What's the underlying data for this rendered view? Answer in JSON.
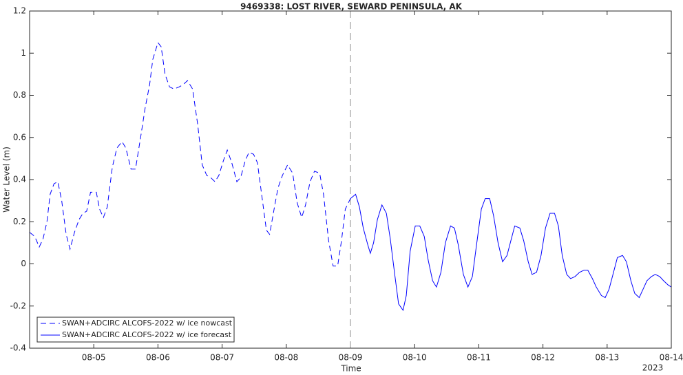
{
  "chart_data": {
    "type": "line",
    "title": "9469338: LOST RIVER, SEWARD PENINSULA, AK",
    "x_label": "Time",
    "y_label": "Water Level (m)",
    "x_axis_year": "2023",
    "xlim": [
      4,
      14
    ],
    "ylim": [
      -0.4,
      1.2
    ],
    "xticks": [
      {
        "value": 5,
        "label": "08-05"
      },
      {
        "value": 6,
        "label": "08-06"
      },
      {
        "value": 7,
        "label": "08-07"
      },
      {
        "value": 8,
        "label": "08-08"
      },
      {
        "value": 9,
        "label": "08-09"
      },
      {
        "value": 10,
        "label": "08-10"
      },
      {
        "value": 11,
        "label": "08-11"
      },
      {
        "value": 12,
        "label": "08-12"
      },
      {
        "value": 13,
        "label": "08-13"
      },
      {
        "value": 14,
        "label": "08-14"
      }
    ],
    "yticks": [
      -0.4,
      -0.2,
      0,
      0.2,
      0.4,
      0.6,
      0.8,
      1,
      1.2
    ],
    "divider_x": 9,
    "grid": false,
    "legend_position": "lower left",
    "series": [
      {
        "name": "SWAN+ADCIRC ALCOFS-2022 w/ ice nowcast",
        "color": "#0000ff",
        "dash": true,
        "x": [
          4.0,
          4.08,
          4.15,
          4.21,
          4.27,
          4.32,
          4.38,
          4.44,
          4.5,
          4.57,
          4.63,
          4.7,
          4.77,
          4.83,
          4.89,
          4.95,
          5.04,
          5.09,
          5.15,
          5.21,
          5.29,
          5.36,
          5.44,
          5.5,
          5.58,
          5.65,
          5.73,
          5.8,
          5.87,
          5.92,
          6.0,
          6.05,
          6.11,
          6.18,
          6.25,
          6.33,
          6.39,
          6.46,
          6.54,
          6.62,
          6.69,
          6.76,
          6.82,
          6.89,
          6.95,
          7.02,
          7.08,
          7.15,
          7.23,
          7.29,
          7.36,
          7.42,
          7.49,
          7.55,
          7.62,
          7.69,
          7.74,
          7.81,
          7.87,
          7.94,
          8.02,
          8.1,
          8.17,
          8.24,
          8.3,
          8.37,
          8.44,
          8.52,
          8.58,
          8.66,
          8.73,
          8.8,
          8.86,
          8.92,
          9.0
        ],
        "values": [
          0.15,
          0.13,
          0.08,
          0.12,
          0.2,
          0.33,
          0.38,
          0.39,
          0.3,
          0.14,
          0.07,
          0.15,
          0.21,
          0.24,
          0.25,
          0.34,
          0.34,
          0.26,
          0.22,
          0.27,
          0.46,
          0.55,
          0.58,
          0.55,
          0.45,
          0.45,
          0.6,
          0.74,
          0.85,
          0.97,
          1.05,
          1.03,
          0.9,
          0.84,
          0.83,
          0.84,
          0.85,
          0.87,
          0.83,
          0.66,
          0.47,
          0.42,
          0.41,
          0.39,
          0.42,
          0.49,
          0.54,
          0.48,
          0.39,
          0.41,
          0.49,
          0.53,
          0.52,
          0.48,
          0.32,
          0.16,
          0.14,
          0.26,
          0.36,
          0.42,
          0.47,
          0.43,
          0.29,
          0.22,
          0.28,
          0.39,
          0.44,
          0.43,
          0.33,
          0.11,
          -0.01,
          -0.01,
          0.11,
          0.26,
          0.31
        ]
      },
      {
        "name": "SWAN+ADCIRC ALCOFS-2022 w/ ice forecast",
        "color": "#0000ff",
        "dash": false,
        "x": [
          9.0,
          9.08,
          9.14,
          9.2,
          9.27,
          9.31,
          9.36,
          9.42,
          9.49,
          9.56,
          9.62,
          9.69,
          9.75,
          9.82,
          9.87,
          9.93,
          10.01,
          10.08,
          10.15,
          10.21,
          10.28,
          10.34,
          10.41,
          10.48,
          10.56,
          10.62,
          10.68,
          10.76,
          10.83,
          10.9,
          10.96,
          11.04,
          11.1,
          11.17,
          11.23,
          11.3,
          11.37,
          11.44,
          11.5,
          11.56,
          11.64,
          11.7,
          11.77,
          11.83,
          11.9,
          11.97,
          12.04,
          12.11,
          12.18,
          12.24,
          12.3,
          12.37,
          12.43,
          12.5,
          12.57,
          12.64,
          12.7,
          12.77,
          12.83,
          12.91,
          12.97,
          13.03,
          13.1,
          13.16,
          13.24,
          13.3,
          13.37,
          13.43,
          13.5,
          13.56,
          13.62,
          13.69,
          13.75,
          13.82,
          13.88,
          13.95,
          14.0
        ],
        "values": [
          0.31,
          0.33,
          0.27,
          0.17,
          0.09,
          0.05,
          0.1,
          0.21,
          0.28,
          0.24,
          0.12,
          -0.05,
          -0.19,
          -0.22,
          -0.15,
          0.06,
          0.18,
          0.18,
          0.13,
          0.02,
          -0.08,
          -0.11,
          -0.04,
          0.1,
          0.18,
          0.17,
          0.09,
          -0.05,
          -0.11,
          -0.06,
          0.08,
          0.26,
          0.31,
          0.31,
          0.23,
          0.1,
          0.01,
          0.04,
          0.11,
          0.18,
          0.17,
          0.11,
          0.01,
          -0.05,
          -0.04,
          0.04,
          0.17,
          0.24,
          0.24,
          0.18,
          0.04,
          -0.05,
          -0.07,
          -0.06,
          -0.04,
          -0.03,
          -0.03,
          -0.07,
          -0.11,
          -0.15,
          -0.16,
          -0.12,
          -0.04,
          0.03,
          0.04,
          0.01,
          -0.08,
          -0.14,
          -0.16,
          -0.12,
          -0.08,
          -0.06,
          -0.05,
          -0.06,
          -0.08,
          -0.1,
          -0.11
        ]
      }
    ]
  }
}
